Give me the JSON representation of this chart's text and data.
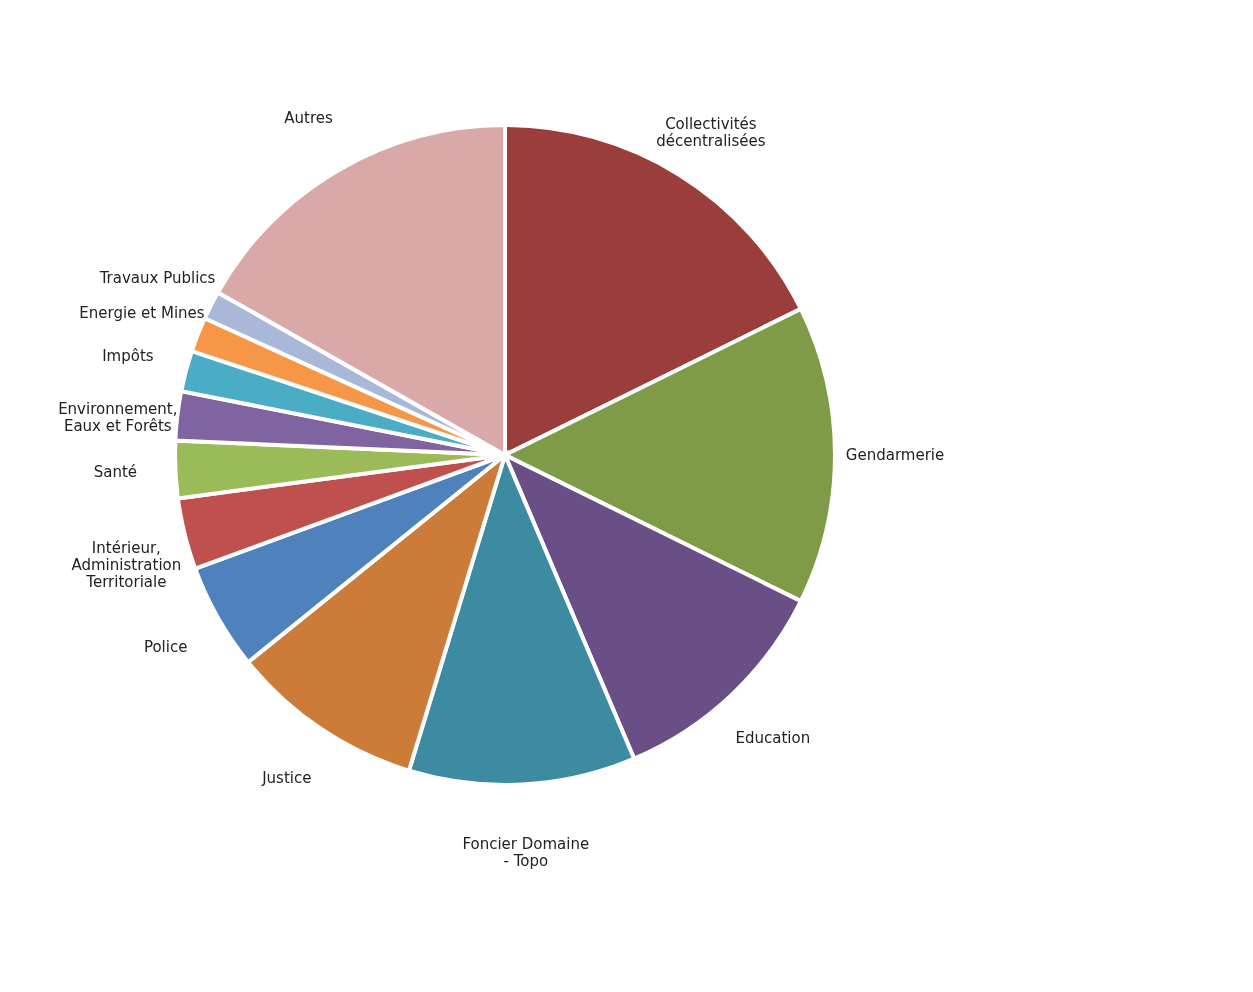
{
  "chart_data": {
    "type": "pie",
    "categories": [
      "Collectivités décentralisées",
      "Gendarmerie",
      "Education",
      "Foncier  Domaine - Topo",
      "Justice",
      "Police",
      "Intérieur, Administration Territoriale",
      "Santé",
      "Environnement, Eaux et Forêts",
      "Impôts",
      "Energie et Mines",
      "Travaux Publics",
      "Autres"
    ],
    "values": [
      17.7,
      14.6,
      11.3,
      11.1,
      9.5,
      5.2,
      3.5,
      2.8,
      2.4,
      2.0,
      1.7,
      1.4,
      16.8
    ],
    "colors": [
      "#9b3d3b",
      "#7f9b48",
      "#6a4e86",
      "#3c8ba0",
      "#cc7b38",
      "#4f81bd",
      "#c0504d",
      "#9bbb59",
      "#8064a2",
      "#4bacc6",
      "#f79646",
      "#a9b8d9",
      "#d9a9a9"
    ],
    "legend": false
  }
}
